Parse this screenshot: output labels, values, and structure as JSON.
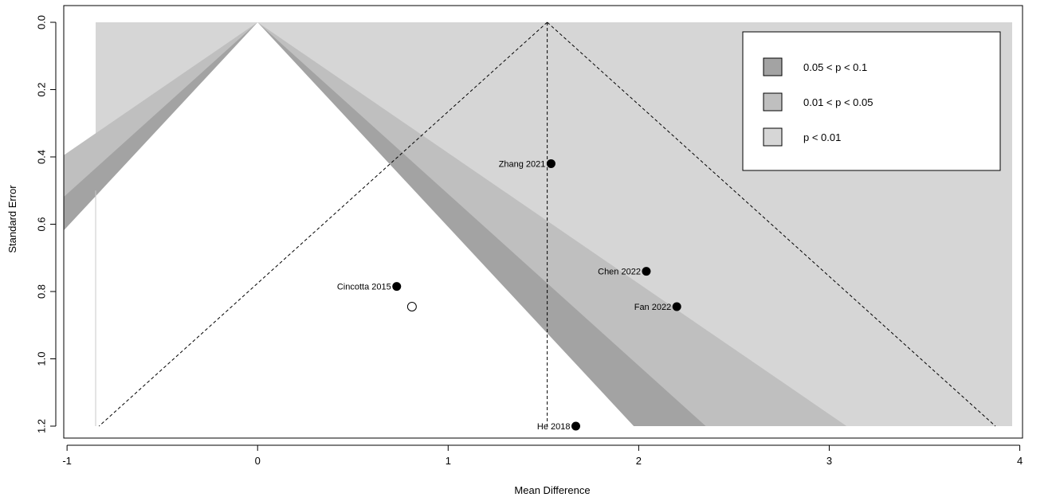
{
  "chart_data": {
    "type": "scatter",
    "subtype": "contour-enhanced funnel plot",
    "xlabel": "Mean Difference",
    "ylabel": "Standard Error",
    "xlim": [
      -0.85,
      3.96
    ],
    "ylim": [
      0,
      1.2
    ],
    "y_reversed": true,
    "x_ticks": [
      "-1",
      "0",
      "1",
      "2",
      "3",
      "4"
    ],
    "y_ticks": [
      "0.0",
      "0.2",
      "0.4",
      "0.6",
      "0.8",
      "1.0",
      "1.2"
    ],
    "reference_center": 0,
    "pooled_estimate": 1.52,
    "max_se": 1.2,
    "legend": {
      "position": "top-right",
      "entries": [
        {
          "label": "0.05 < p < 0.1",
          "color": "#a3a3a3"
        },
        {
          "label": "0.01 < p < 0.05",
          "color": "#bfbfbf"
        },
        {
          "label": "p < 0.01",
          "color": "#d6d6d6"
        }
      ]
    },
    "studies": [
      {
        "name": "Zhang 2021",
        "x": 1.54,
        "y": 0.42
      },
      {
        "name": "Chen 2022",
        "x": 2.04,
        "y": 0.74
      },
      {
        "name": "Fan 2022",
        "x": 2.2,
        "y": 0.845
      },
      {
        "name": "Cincotta 2015",
        "x": 0.73,
        "y": 0.785
      },
      {
        "name": "He 2018",
        "x": 1.67,
        "y": 1.2
      }
    ],
    "imputed": [
      {
        "x": 0.81,
        "y": 0.845
      }
    ]
  }
}
